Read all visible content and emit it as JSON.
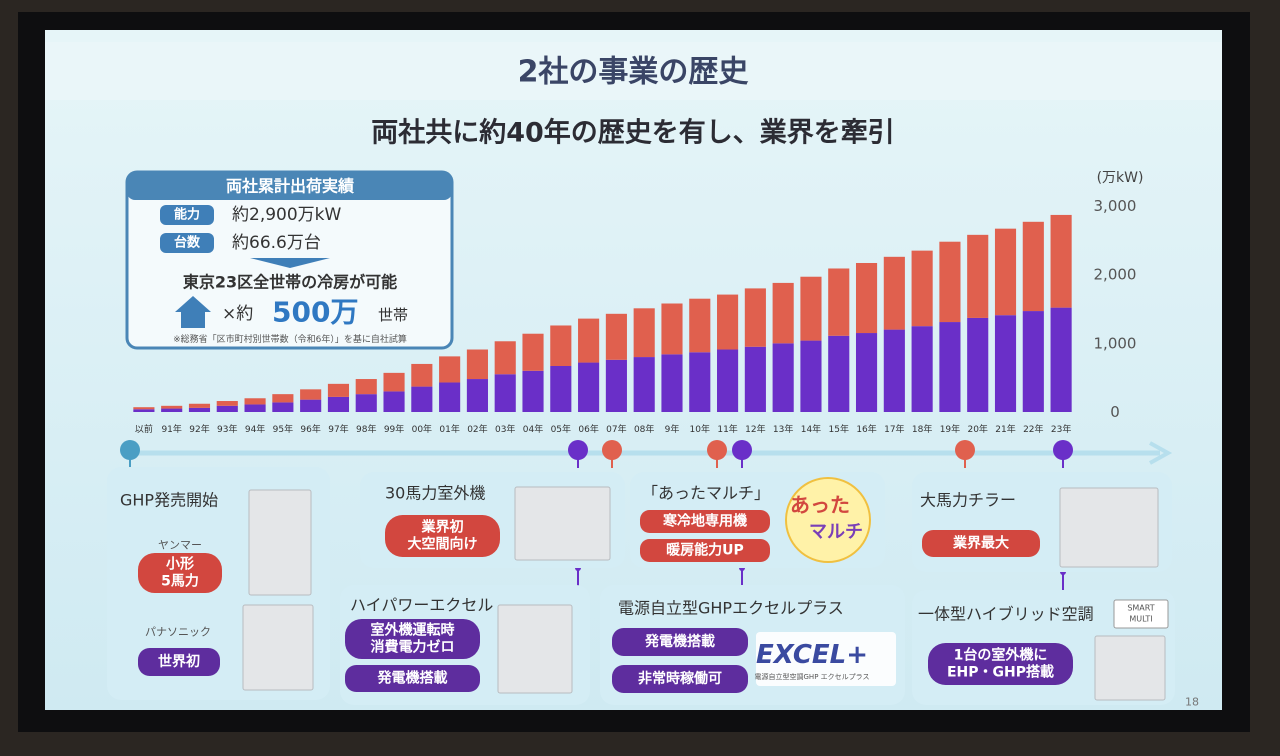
{
  "slide": {
    "title": "2社の事業の歴史",
    "subtitle": "両社共に約40年の歴史を有し、業界を牽引",
    "page_number": "18"
  },
  "info_box": {
    "header": "両社累計出荷実績",
    "rows": [
      {
        "label": "能力",
        "value": "約2,900万kW"
      },
      {
        "label": "台数",
        "value": "約66.6万台"
      }
    ],
    "statement": "東京23区全世帯の冷房が可能",
    "multiplier": "×約",
    "households": "500万",
    "unit": "世帯",
    "note": "※総務省「区市町村別世帯数（令和6年）」を基に自社試算"
  },
  "chart_data": {
    "type": "stacked_bar",
    "y_label": "(万kW)",
    "categories": [
      "以前",
      "91年",
      "92年",
      "93年",
      "94年",
      "95年",
      "96年",
      "97年",
      "98年",
      "99年",
      "00年",
      "01年",
      "02年",
      "03年",
      "04年",
      "05年",
      "06年",
      "07年",
      "08年",
      "9年",
      "10年",
      "11年",
      "12年",
      "13年",
      "14年",
      "15年",
      "16年",
      "17年",
      "18年",
      "19年",
      "20年",
      "21年",
      "22年",
      "23年"
    ],
    "series": [
      {
        "color": "#6a2fc8",
        "values": [
          40,
          50,
          60,
          90,
          110,
          140,
          180,
          220,
          260,
          300,
          370,
          430,
          480,
          550,
          600,
          670,
          720,
          760,
          800,
          840,
          870,
          910,
          950,
          1000,
          1040,
          1110,
          1150,
          1200,
          1250,
          1310,
          1370,
          1410,
          1470,
          1520
        ]
      },
      {
        "color": "#e0604e",
        "values": [
          30,
          40,
          60,
          70,
          90,
          120,
          150,
          190,
          220,
          270,
          330,
          380,
          430,
          480,
          540,
          590,
          640,
          670,
          710,
          740,
          780,
          800,
          850,
          880,
          930,
          980,
          1020,
          1060,
          1100,
          1170,
          1210,
          1260,
          1300,
          1350
        ]
      }
    ],
    "ylim": [
      0,
      3000
    ],
    "yticks": [
      0,
      {
        "value": 1000,
        "label": "1,000"
      },
      {
        "value": 2000,
        "label": "2,000"
      },
      {
        "value": 3000,
        "label": "3,000"
      }
    ],
    "grid": false
  },
  "cards": [
    {
      "title": "GHP発売開始",
      "labels": [
        "ヤンマー",
        "パナソニック"
      ],
      "badges": [
        [
          "小形",
          "5馬力"
        ],
        [
          "世界初"
        ]
      ]
    },
    {
      "title": "30馬力室外機",
      "badges": [
        [
          "業界初",
          "大空間向け"
        ]
      ]
    },
    {
      "title": "「あったマルチ」",
      "badges": [
        [
          "寒冷地専用機"
        ],
        [
          "暖房能力UP"
        ]
      ],
      "logo": [
        "あった",
        "マルチ"
      ]
    },
    {
      "title": "大馬力チラー",
      "badges": [
        [
          "業界最大"
        ]
      ]
    },
    {
      "title": "ハイパワーエクセル",
      "badges": [
        [
          "室外機運転時",
          "消費電力ゼロ"
        ],
        [
          "発電機搭載"
        ]
      ]
    },
    {
      "title": "電源自立型GHPエクセルプラス",
      "badges": [
        [
          "発電機搭載"
        ],
        [
          "非常時稼働可"
        ]
      ],
      "logo": [
        "EXCEL+",
        "電源自立型空調GHP エクセルプラス"
      ]
    },
    {
      "title": "一体型ハイブリッド空調",
      "badges": [
        [
          "1台の室外機に",
          "EHP・GHP搭載"
        ]
      ],
      "logo": [
        "SMART",
        "MULTI"
      ]
    }
  ]
}
